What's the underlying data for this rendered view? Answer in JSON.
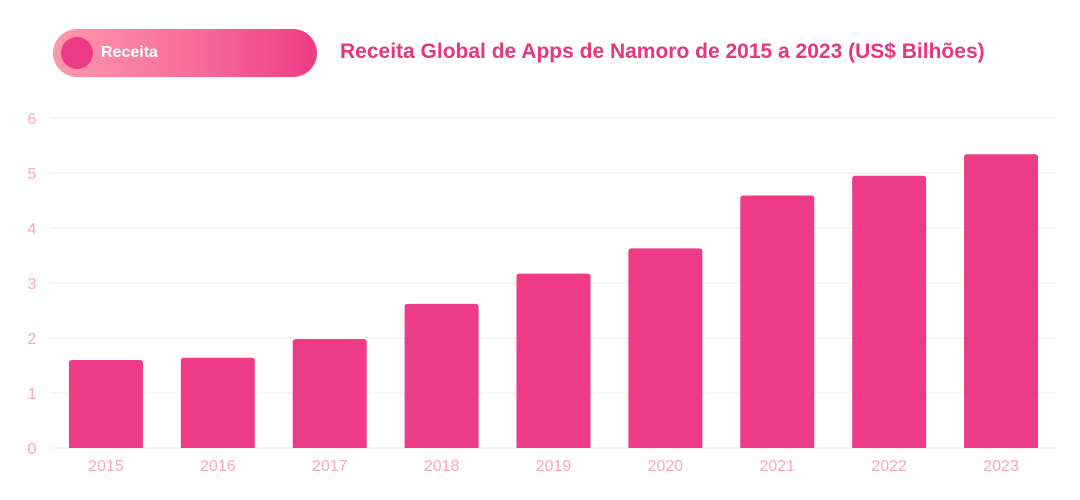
{
  "legend": {
    "label": "Receita",
    "color": "#ee3b86"
  },
  "chart_data": {
    "type": "bar",
    "title": "Receita Global de Apps de Namoro de 2015 a 2023 (US$ Bilhões)",
    "xlabel": "",
    "ylabel": "",
    "categories": [
      "2015",
      "2016",
      "2017",
      "2018",
      "2019",
      "2020",
      "2021",
      "2022",
      "2023"
    ],
    "series": [
      {
        "name": "Receita",
        "values": [
          1.6,
          1.64,
          1.98,
          2.62,
          3.17,
          3.63,
          4.59,
          4.95,
          5.34
        ]
      }
    ],
    "ylim": [
      0,
      6
    ],
    "yticks": [
      "0",
      "1",
      "2",
      "3",
      "4",
      "5",
      "6"
    ],
    "grid": true,
    "legend_position": "top-left",
    "colors": {
      "bar": "#ee3b86",
      "tick": "#f7a8b8",
      "grid": "#fbe6ea"
    }
  }
}
